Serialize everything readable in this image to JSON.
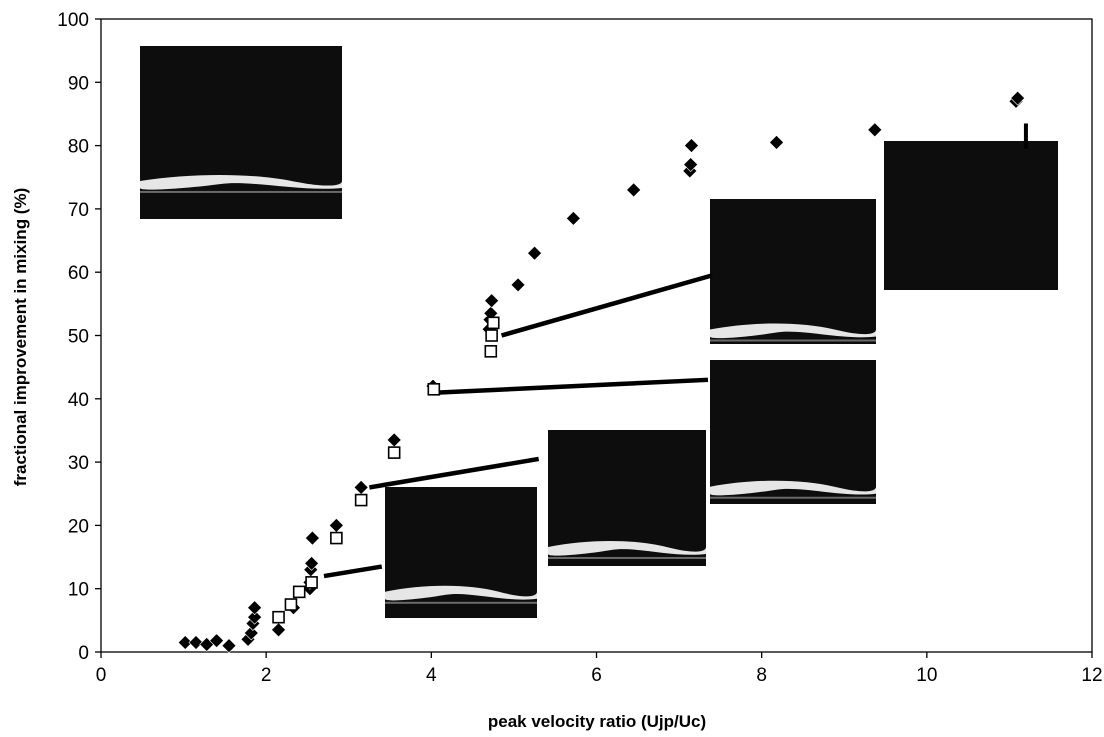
{
  "chart_data": {
    "type": "scatter",
    "title": "",
    "xlabel": "peak velocity ratio (Ujp/Uc)",
    "ylabel": "fractional improvement in mixing (%)",
    "xlim": [
      0,
      12
    ],
    "ylim": [
      0,
      100
    ],
    "x_ticks": [
      "0",
      "2",
      "4",
      "6",
      "8",
      "10",
      "12"
    ],
    "y_ticks": [
      "0",
      "10",
      "20",
      "30",
      "40",
      "50",
      "60",
      "70",
      "80",
      "90",
      "100"
    ],
    "grid": false,
    "legend": "none",
    "series": [
      {
        "marker": "filled-diamond",
        "color": "#000000",
        "points": [
          [
            1.02,
            1.5
          ],
          [
            1.15,
            1.5
          ],
          [
            1.28,
            1.2
          ],
          [
            1.4,
            1.8
          ],
          [
            1.55,
            1.0
          ],
          [
            1.78,
            2.0
          ],
          [
            1.82,
            3.0
          ],
          [
            1.84,
            4.5
          ],
          [
            1.86,
            5.5
          ],
          [
            1.86,
            7.0
          ],
          [
            2.15,
            3.5
          ],
          [
            2.33,
            7.0
          ],
          [
            2.53,
            10.0
          ],
          [
            2.53,
            11.0
          ],
          [
            2.54,
            13.0
          ],
          [
            2.55,
            14.0
          ],
          [
            2.56,
            18.0
          ],
          [
            2.85,
            20.0
          ],
          [
            3.15,
            26.0
          ],
          [
            3.55,
            33.5
          ],
          [
            4.02,
            42.0
          ],
          [
            4.7,
            51.0
          ],
          [
            4.71,
            52.5
          ],
          [
            4.72,
            53.5
          ],
          [
            4.73,
            55.5
          ],
          [
            5.05,
            58.0
          ],
          [
            5.25,
            63.0
          ],
          [
            5.72,
            68.5
          ],
          [
            6.45,
            73.0
          ],
          [
            7.13,
            76.0
          ],
          [
            7.14,
            77.0
          ],
          [
            7.15,
            80.0
          ],
          [
            8.18,
            80.5
          ],
          [
            9.37,
            82.5
          ],
          [
            11.08,
            87.0
          ],
          [
            11.1,
            87.5
          ]
        ]
      },
      {
        "marker": "open-square",
        "color": "#000000",
        "points": [
          [
            2.15,
            5.5
          ],
          [
            2.3,
            7.5
          ],
          [
            2.4,
            9.5
          ],
          [
            2.55,
            11.0
          ],
          [
            2.85,
            18.0
          ],
          [
            3.15,
            24.0
          ],
          [
            3.55,
            31.5
          ],
          [
            4.03,
            41.5
          ],
          [
            4.72,
            47.5
          ],
          [
            4.73,
            50.0
          ],
          [
            4.75,
            52.0
          ]
        ]
      }
    ],
    "error_bars": [
      {
        "x": 11.2,
        "y_low": 79.5,
        "y_high": 83.5
      }
    ],
    "inset_images": [
      {
        "name": "inset-top-left"
      },
      {
        "name": "inset-u2.5"
      },
      {
        "name": "inset-u3.2"
      },
      {
        "name": "inset-u4"
      },
      {
        "name": "inset-u4.7"
      },
      {
        "name": "inset-top-right"
      }
    ],
    "leader_lines": [
      {
        "from": [
          2.7,
          12.0
        ],
        "to": [
          3.4,
          13.5
        ]
      },
      {
        "from": [
          3.25,
          26.0
        ],
        "to": [
          5.3,
          30.5
        ]
      },
      {
        "from": [
          4.1,
          41.0
        ],
        "to": [
          7.35,
          43.0
        ]
      },
      {
        "from": [
          4.85,
          50.0
        ],
        "to": [
          7.4,
          59.5
        ]
      }
    ]
  }
}
